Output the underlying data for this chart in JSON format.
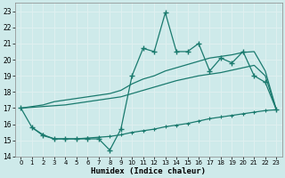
{
  "xlabel": "Humidex (Indice chaleur)",
  "xlim": [
    -0.5,
    23.5
  ],
  "ylim": [
    14,
    23.5
  ],
  "yticks": [
    14,
    15,
    16,
    17,
    18,
    19,
    20,
    21,
    22,
    23
  ],
  "xticks": [
    0,
    1,
    2,
    3,
    4,
    5,
    6,
    7,
    8,
    9,
    10,
    11,
    12,
    13,
    14,
    15,
    16,
    17,
    18,
    19,
    20,
    21,
    22,
    23
  ],
  "bg_color": "#ceeaea",
  "grid_color": "#e8f8f8",
  "line_color": "#1a7a6e",
  "erratic_x": [
    0,
    1,
    2,
    3,
    4,
    5,
    6,
    7,
    8,
    9,
    10,
    11,
    12,
    13,
    14,
    15,
    16,
    17,
    18,
    19,
    20,
    21,
    22,
    23
  ],
  "erratic_y": [
    17.0,
    15.8,
    15.3,
    15.1,
    15.1,
    15.1,
    15.1,
    15.1,
    14.4,
    15.7,
    19.0,
    20.7,
    20.5,
    22.9,
    20.5,
    20.5,
    21.0,
    19.3,
    20.1,
    19.8,
    20.5,
    19.0,
    18.6,
    16.9
  ],
  "upper_x": [
    0,
    1,
    2,
    3,
    4,
    5,
    6,
    7,
    8,
    9,
    10,
    11,
    12,
    13,
    14,
    15,
    16,
    17,
    18,
    19,
    20,
    21,
    22,
    23
  ],
  "upper_y": [
    17.0,
    17.1,
    17.2,
    17.4,
    17.5,
    17.6,
    17.7,
    17.8,
    17.9,
    18.1,
    18.5,
    18.8,
    19.0,
    19.3,
    19.5,
    19.7,
    19.9,
    20.1,
    20.2,
    20.3,
    20.45,
    20.5,
    19.3,
    16.9
  ],
  "lower_x": [
    0,
    1,
    2,
    3,
    4,
    5,
    6,
    7,
    8,
    9,
    10,
    11,
    12,
    13,
    14,
    15,
    16,
    17,
    18,
    19,
    20,
    21,
    22,
    23
  ],
  "lower_y": [
    17.0,
    17.05,
    17.1,
    17.15,
    17.2,
    17.3,
    17.4,
    17.5,
    17.6,
    17.7,
    17.9,
    18.1,
    18.3,
    18.5,
    18.7,
    18.85,
    19.0,
    19.1,
    19.2,
    19.35,
    19.5,
    19.65,
    19.0,
    16.9
  ],
  "flat_x": [
    1,
    2,
    3,
    4,
    5,
    6,
    7,
    8,
    9,
    10,
    11,
    12,
    13,
    14,
    15,
    16,
    17,
    18,
    19,
    20,
    21,
    22,
    23
  ],
  "flat_y": [
    15.8,
    15.35,
    15.1,
    15.1,
    15.1,
    15.15,
    15.2,
    15.25,
    15.35,
    15.5,
    15.6,
    15.7,
    15.85,
    15.95,
    16.05,
    16.2,
    16.35,
    16.45,
    16.55,
    16.65,
    16.75,
    16.85,
    16.9
  ]
}
